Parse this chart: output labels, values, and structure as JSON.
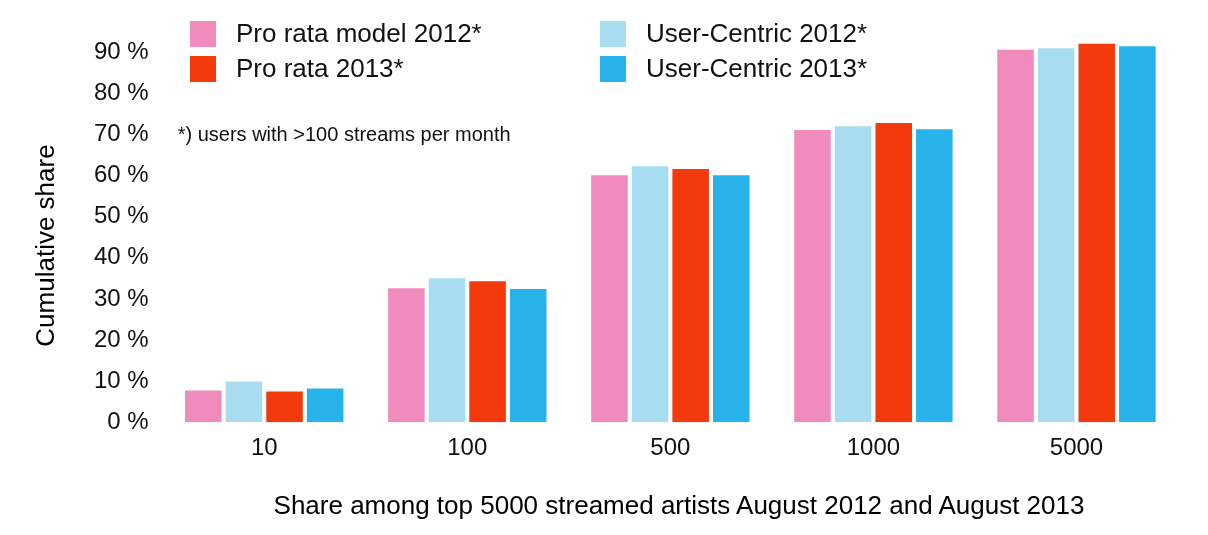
{
  "chart_data": {
    "type": "bar",
    "xlabel": "Share among top 5000 streamed artists August 2012 and August 2013",
    "ylabel": "Cumulative share",
    "categories": [
      "10",
      "100",
      "500",
      "1000",
      "5000"
    ],
    "series": [
      {
        "name": "Pro rata model 2012*",
        "color": "#f08cbc",
        "values": [
          7.7,
          32.6,
          60.1,
          71.1,
          90.6
        ]
      },
      {
        "name": "User-Centric 2012*",
        "color": "#a8dcf0",
        "values": [
          9.9,
          35,
          62.3,
          72,
          91
        ]
      },
      {
        "name": "Pro rata 2013*",
        "color": "#f23a0c",
        "values": [
          7.5,
          34.3,
          61.6,
          72.8,
          92.1
        ]
      },
      {
        "name": "User-Centric 2013*",
        "color": "#28b2ea",
        "values": [
          8.2,
          32.4,
          60.1,
          71.3,
          91.5
        ]
      }
    ],
    "ylim": [
      0,
      93
    ],
    "yticks": [
      {
        "value": 0,
        "label": "0 %"
      },
      {
        "value": 10,
        "label": "10 %"
      },
      {
        "value": 20,
        "label": "20 %"
      },
      {
        "value": 30,
        "label": "30 %"
      },
      {
        "value": 40,
        "label": "40 %"
      },
      {
        "value": 50,
        "label": "50 %"
      },
      {
        "value": 60,
        "label": "60 %"
      },
      {
        "value": 70,
        "label": "70 %"
      },
      {
        "value": 80,
        "label": "80 %"
      },
      {
        "value": 90,
        "label": "90 %"
      }
    ],
    "grid": false,
    "legend": "top left",
    "annotations": [
      "*) users with >100 streams per month"
    ]
  }
}
